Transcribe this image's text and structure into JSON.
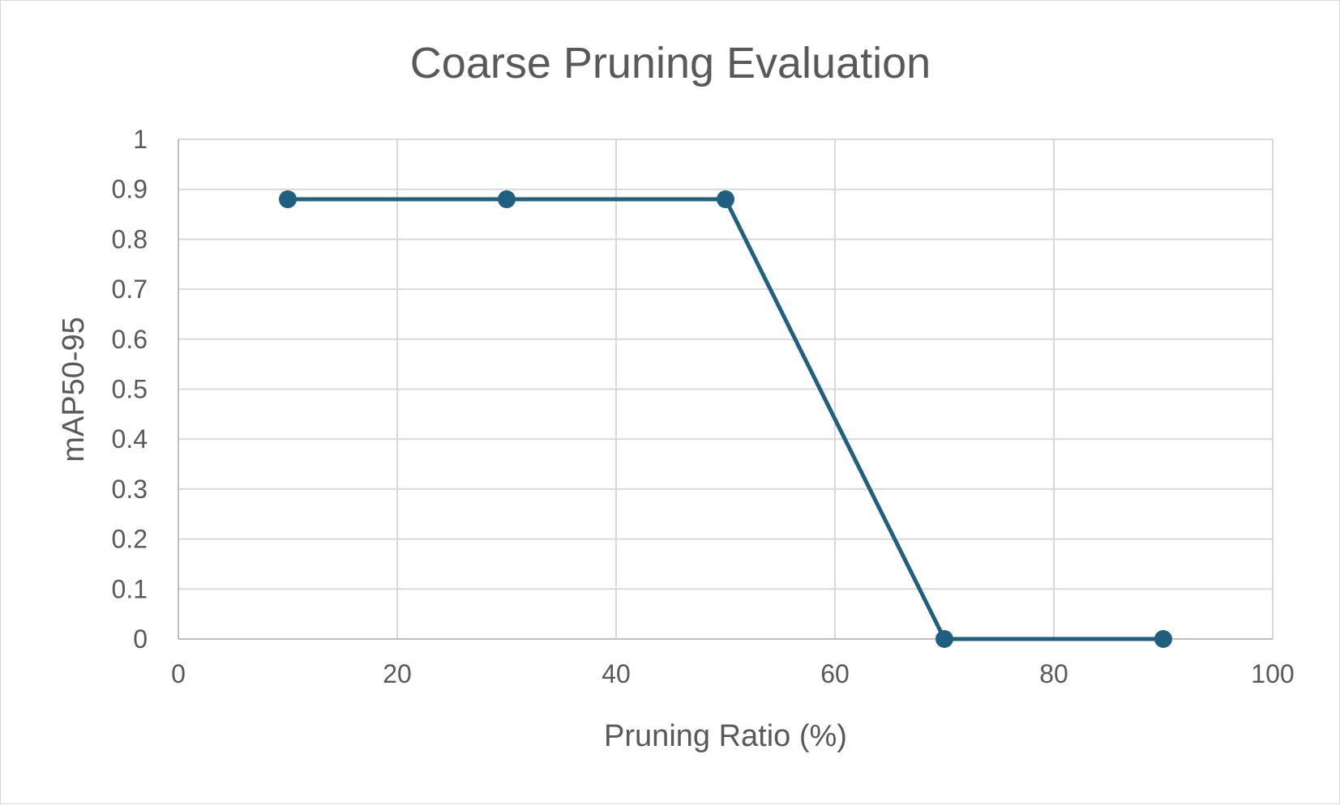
{
  "chart_data": {
    "type": "scatter",
    "title": "Coarse Pruning Evaluation",
    "xlabel": "Pruning Ratio (%)",
    "ylabel": "mAP50-95",
    "xlim": [
      0,
      100
    ],
    "ylim": [
      0,
      1
    ],
    "x_ticks": [
      "0",
      "20",
      "40",
      "60",
      "80",
      "100"
    ],
    "y_ticks": [
      "0",
      "0.1",
      "0.2",
      "0.3",
      "0.4",
      "0.5",
      "0.6",
      "0.7",
      "0.8",
      "0.9",
      "1"
    ],
    "grid": true,
    "legend": "none",
    "marker": "circle",
    "connected": true,
    "series": [
      {
        "color": "#1F6080",
        "x": [
          10,
          30,
          50,
          70,
          90
        ],
        "y": [
          0.88,
          0.88,
          0.88,
          0,
          0
        ]
      }
    ]
  }
}
